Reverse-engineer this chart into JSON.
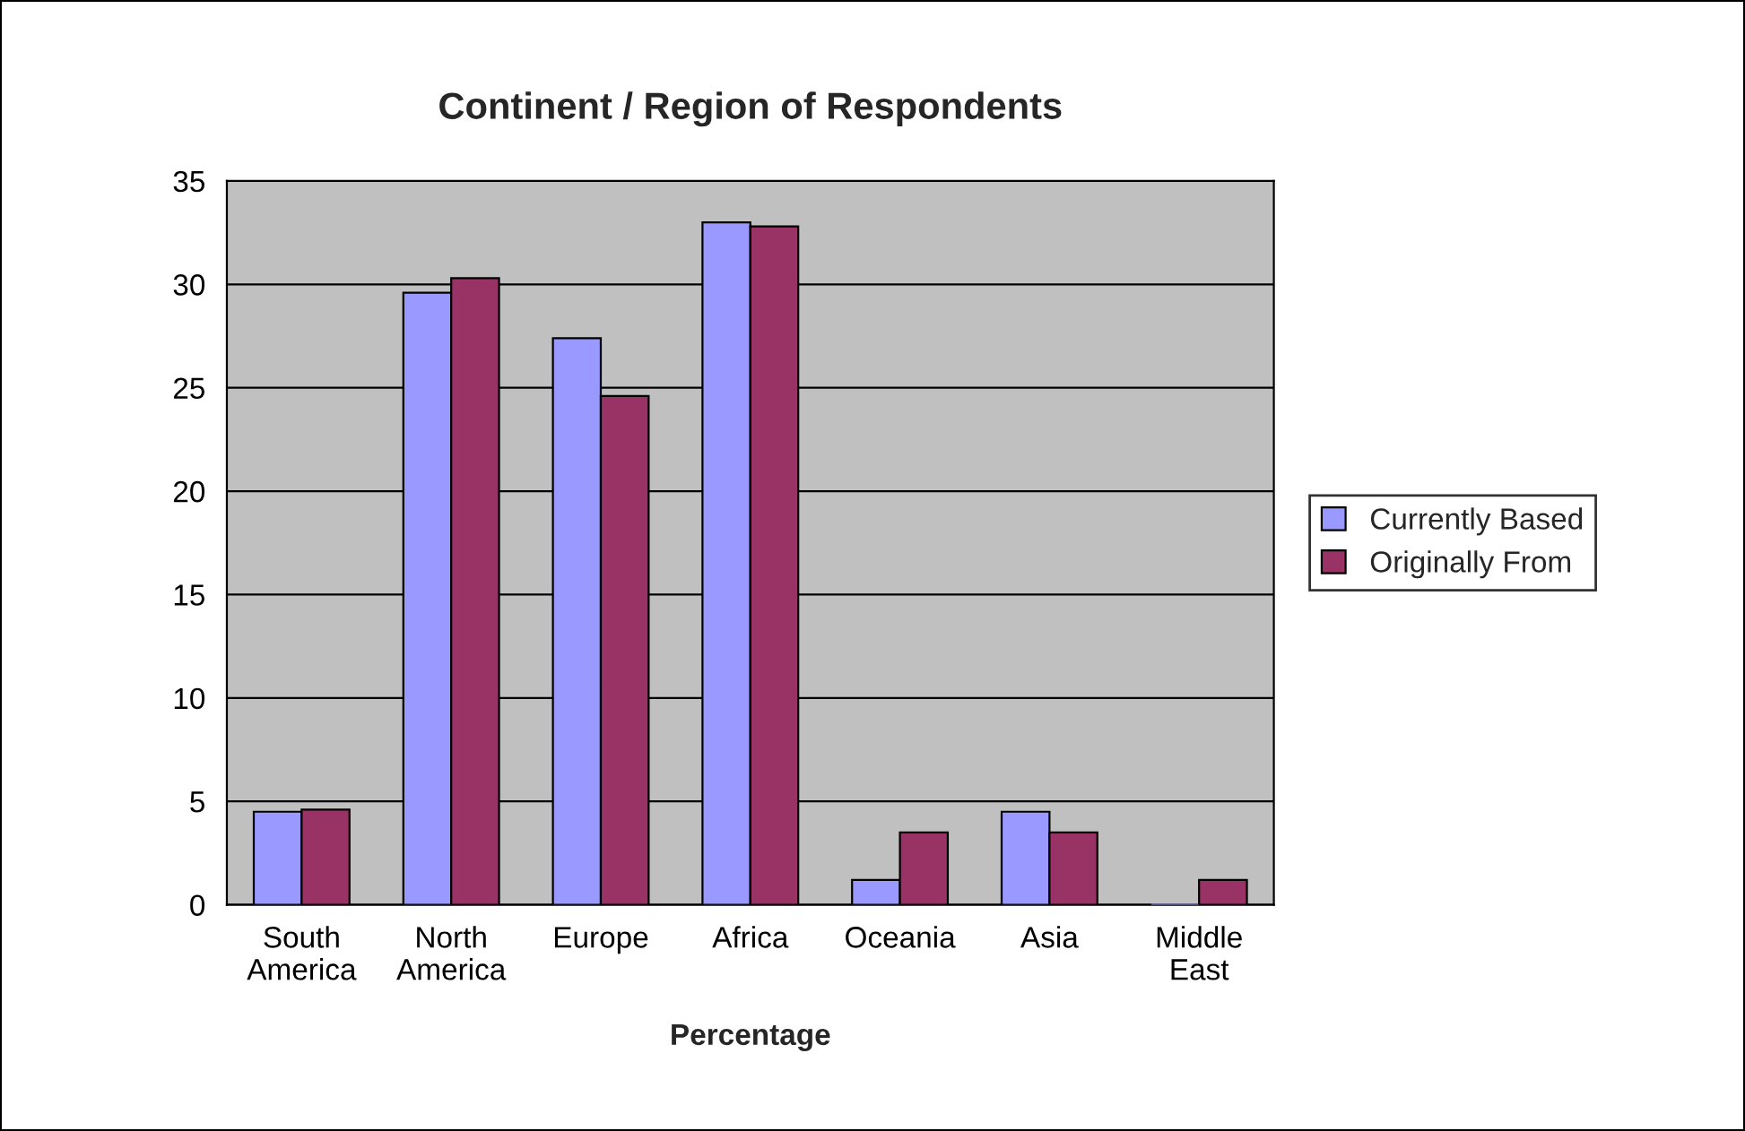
{
  "chart_data": {
    "type": "bar",
    "title": "Continent / Region of Respondents",
    "xlabel": "Percentage",
    "categories": [
      "South\nAmerica",
      "North\nAmerica",
      "Europe",
      "Africa",
      "Oceania",
      "Asia",
      "Middle\nEast"
    ],
    "series": [
      {
        "name": "Currently Based",
        "color": "#9999ff",
        "values": [
          4.5,
          29.6,
          27.4,
          33.0,
          1.2,
          4.5,
          0
        ]
      },
      {
        "name": "Originally From",
        "color": "#993366",
        "values": [
          4.6,
          30.3,
          24.6,
          32.8,
          3.5,
          3.5,
          1.2
        ]
      }
    ],
    "ylim": [
      0,
      35
    ],
    "yticks": [
      0,
      5,
      10,
      15,
      20,
      25,
      30,
      35
    ],
    "grid": "y",
    "legend": "right"
  }
}
